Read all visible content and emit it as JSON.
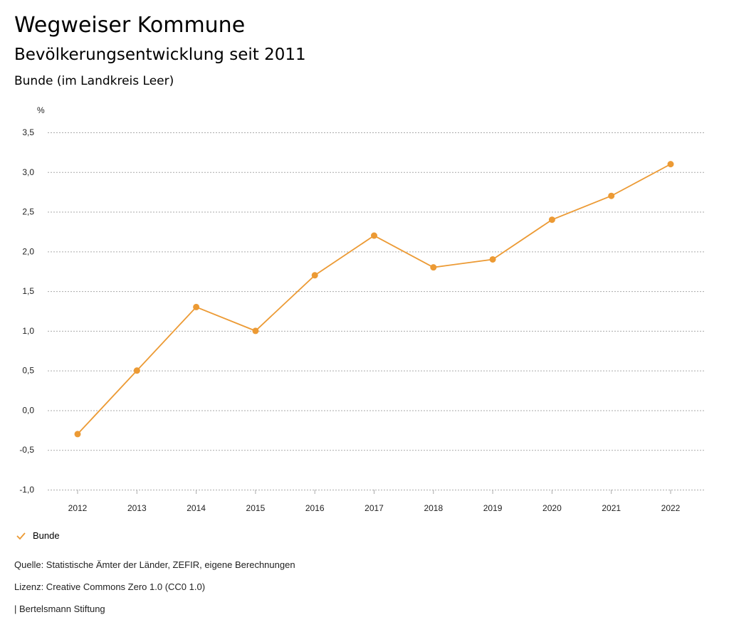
{
  "header": {
    "title": "Wegweiser Kommune",
    "subtitle": "Bevölkerungsentwicklung seit 2011",
    "region": "Bunde (im Landkreis Leer)"
  },
  "chart_data": {
    "type": "line",
    "ylabel": "%",
    "x": [
      "2012",
      "2013",
      "2014",
      "2015",
      "2016",
      "2017",
      "2018",
      "2019",
      "2020",
      "2021",
      "2022"
    ],
    "series": [
      {
        "name": "Bunde",
        "color": "#ec9a34",
        "values": [
          -0.3,
          0.5,
          1.3,
          1.0,
          1.7,
          2.2,
          1.8,
          1.9,
          2.4,
          2.7,
          3.1
        ]
      }
    ],
    "ylim": [
      -1.0,
      3.5
    ],
    "yticks": [
      3.5,
      3.0,
      2.5,
      2.0,
      1.5,
      1.0,
      0.5,
      0.0,
      -0.5,
      -1.0
    ],
    "ytick_labels": [
      "3,5",
      "3,0",
      "2,5",
      "2,0",
      "1,5",
      "1,0",
      "0,5",
      "0,0",
      "-0,5",
      "-1,0"
    ],
    "grid": true,
    "legend": "bottom-left"
  },
  "legend": {
    "label": "Bunde"
  },
  "footer": {
    "source": "Quelle: Statistische Ämter der Länder, ZEFIR, eigene Berechnungen",
    "license": "Lizenz: Creative Commons Zero 1.0 (CC0 1.0)",
    "publisher": "| Bertelsmann Stiftung"
  }
}
